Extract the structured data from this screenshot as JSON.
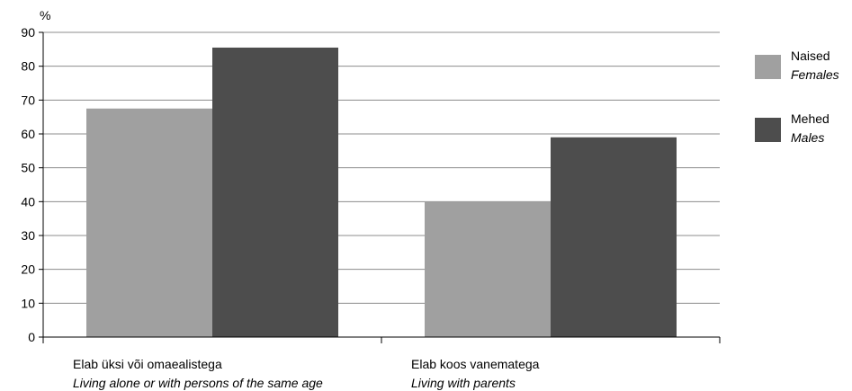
{
  "chart_data": {
    "type": "bar",
    "ylabel": "%",
    "ylim": [
      0,
      90
    ],
    "yticks": [
      0,
      10,
      20,
      30,
      40,
      50,
      60,
      70,
      80,
      90
    ],
    "grid": true,
    "legend_position": "right",
    "categories": [
      {
        "label": "Elab üksi või omaealistega",
        "label_en": "Living alone or with persons of the same age"
      },
      {
        "label": "Elab koos vanematega",
        "label_en": "Living with parents"
      }
    ],
    "series": [
      {
        "name": "Naised",
        "name_en": "Females",
        "color": "#a0a0a0",
        "values": [
          67.5,
          40
        ]
      },
      {
        "name": "Mehed",
        "name_en": "Males",
        "color": "#4d4d4d",
        "values": [
          85.5,
          59
        ]
      }
    ]
  }
}
